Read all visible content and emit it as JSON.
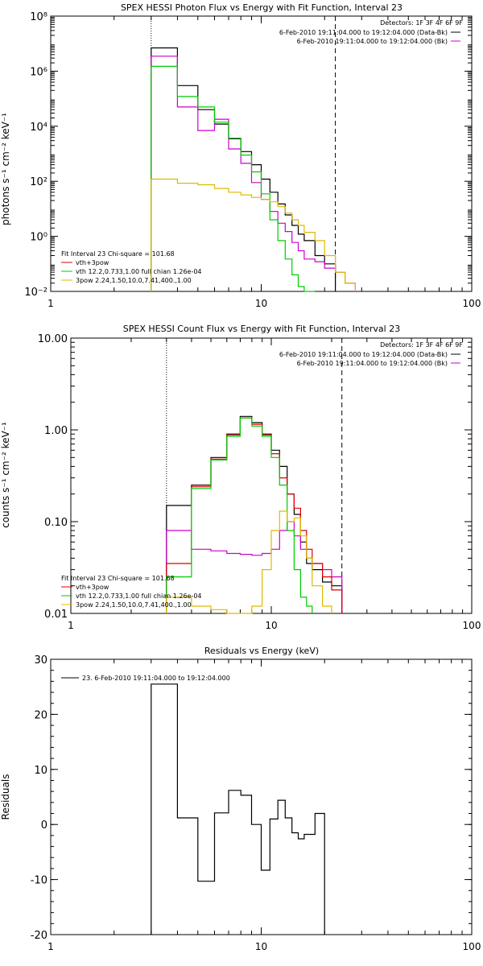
{
  "colors": {
    "data": "#000000",
    "bk": "#cc00cc",
    "total": "#dd0000",
    "thermal": "#00cc00",
    "pow": "#ddbb00"
  },
  "chart_data": [
    {
      "type": "line",
      "title": "SPEX HESSI Photon Flux vs Energy with Fit Function, Interval 23",
      "xlabel": "",
      "ylabel": "photons s⁻¹ cm⁻² keV⁻¹",
      "xscale": "log",
      "yscale": "log",
      "xlim": [
        1,
        100
      ],
      "ylim": [
        0.01,
        100000000
      ],
      "x_ticks": [
        "1",
        "10",
        "100"
      ],
      "y_ticks": [
        "10⁻²",
        "10⁰",
        "10²",
        "10⁴",
        "10⁶",
        "10⁸"
      ],
      "vlines": [
        {
          "x": 3.0,
          "style": "dotted"
        },
        {
          "x": 22.5,
          "style": "dashed"
        }
      ],
      "legend_top": [
        "Detectors: 1F 3F 4F 6F 9F",
        "6-Feb-2010 19:11:04.000 to 19:12:04.000 (Data-Bk)",
        "6-Feb-2010 19:11:04.000 to 19:12:04.000 (Bk)"
      ],
      "legend_fit_header": "Fit Interval 23   Chi-square = 101.68",
      "legend_fit": [
        "vth+3pow",
        "vth 12.2,0.733,1.00  full chian 1.26e-04",
        "3pow 2.24,1.50,10.0,7.41,400.,1.00"
      ],
      "edges": [
        3.0,
        4.0,
        5.0,
        6.0,
        7.0,
        8.0,
        9.0,
        10.0,
        11.0,
        12.0,
        13.0,
        14.0,
        15.0,
        16.0,
        18.0,
        20.0,
        22.5,
        25.0,
        28.0
      ],
      "series": [
        {
          "role": "data",
          "values": [
            7000000,
            300000,
            40000,
            12000,
            3500,
            1200,
            400,
            120,
            40,
            15,
            6,
            2.5,
            1.2,
            0.7,
            0.2,
            0.1,
            null,
            null
          ]
        },
        {
          "role": "bk",
          "values": [
            3500000,
            50000,
            7000,
            18000,
            1500,
            450,
            90,
            22,
            8,
            3,
            1.5,
            0.6,
            0.3,
            0.15,
            0.12,
            0.07,
            0.05,
            0.02
          ]
        },
        {
          "role": "thermal",
          "values": [
            1500000,
            120000,
            50000,
            14000,
            3700,
            900,
            220,
            35,
            4,
            0.7,
            0.15,
            0.04,
            0.015,
            0.008,
            null,
            null,
            null,
            null
          ]
        },
        {
          "role": "pow",
          "values": [
            120,
            85,
            75,
            55,
            40,
            32,
            26,
            22,
            18,
            12,
            7,
            4,
            2.5,
            1.4,
            0.7,
            0.2,
            0.05,
            0.02
          ]
        }
      ]
    },
    {
      "type": "line",
      "title": "SPEX HESSI Count Flux vs Energy with Fit Function, Interval 23",
      "xlabel": "",
      "ylabel": "counts s⁻¹ cm⁻² keV⁻¹",
      "xscale": "log",
      "yscale": "log",
      "xlim": [
        1,
        100
      ],
      "ylim": [
        0.01,
        10
      ],
      "x_ticks": [
        "1",
        "10",
        "100"
      ],
      "y_ticks": [
        "0.01",
        "0.10",
        "1.00",
        "10.00"
      ],
      "vlines": [
        {
          "x": 3.0,
          "style": "dotted"
        },
        {
          "x": 22.5,
          "style": "dashed"
        }
      ],
      "legend_top": [
        "Detectors: 1F 3F 4F 6F 9F",
        "6-Feb-2010 19:11:04.000 to 19:12:04.000 (Data-Bk)",
        "6-Feb-2010 19:11:04.000 to 19:12:04.000 (Bk)"
      ],
      "legend_fit_header": "Fit Interval 23   Chi-square = 101.68",
      "legend_fit": [
        "vth+3pow",
        "vth 12.2,0.733,1.00  full chian 1.26e-04",
        "3pow 2.24,1.50,10.0,7.41,400.,1.00"
      ],
      "edges": [
        3.0,
        4.0,
        5.0,
        6.0,
        7.0,
        8.0,
        9.0,
        10.0,
        11.0,
        12.0,
        13.0,
        14.0,
        15.0,
        16.0,
        18.0,
        20.0,
        22.5
      ],
      "series": [
        {
          "role": "data",
          "values": [
            0.15,
            0.25,
            0.5,
            0.9,
            1.4,
            1.2,
            0.9,
            0.6,
            0.4,
            0.2,
            0.12,
            0.06,
            0.035,
            0.03,
            0.022,
            0.02
          ]
        },
        {
          "role": "bk",
          "values": [
            0.08,
            0.05,
            0.048,
            0.045,
            0.044,
            0.043,
            0.045,
            0.05,
            0.08,
            0.1,
            0.07,
            0.05,
            0.04,
            0.035,
            0.03,
            0.025
          ]
        },
        {
          "role": "total",
          "values": [
            0.035,
            0.24,
            0.48,
            0.88,
            1.35,
            1.15,
            0.88,
            0.55,
            0.3,
            0.2,
            0.14,
            0.08,
            0.05,
            0.035,
            0.025,
            0.018
          ]
        },
        {
          "role": "thermal",
          "values": [
            0.025,
            0.23,
            0.47,
            0.85,
            1.35,
            1.1,
            0.85,
            0.5,
            0.25,
            0.08,
            0.03,
            0.015,
            0.012,
            null,
            null,
            null
          ]
        },
        {
          "role": "pow",
          "values": [
            0.015,
            0.012,
            0.011,
            0.01,
            0.01,
            0.012,
            0.03,
            0.08,
            0.13,
            0.1,
            0.11,
            0.07,
            0.04,
            0.02,
            0.012,
            null
          ]
        }
      ]
    },
    {
      "type": "line",
      "title": "Residuals vs Energy (keV)",
      "xlabel": "",
      "ylabel": "Residuals",
      "xscale": "log",
      "yscale": "linear",
      "xlim": [
        1,
        100
      ],
      "ylim": [
        -20,
        30
      ],
      "x_ticks": [
        "1",
        "10",
        "100"
      ],
      "y_ticks": [
        "-20",
        "-10",
        "0",
        "10",
        "20",
        "30"
      ],
      "legend": "23.  6-Feb-2010 19:11:04.000 to 19:12:04.000",
      "edges": [
        3.0,
        4.0,
        5.0,
        6.0,
        7.0,
        8.0,
        9.0,
        10.0,
        11.0,
        12.0,
        13.0,
        14.0,
        15.0,
        16.0,
        18.0,
        20.0,
        22.5
      ],
      "series": [
        {
          "role": "data",
          "values": [
            25.5,
            1.2,
            -10.3,
            2.1,
            6.2,
            5.3,
            0.0,
            -8.3,
            1.0,
            4.4,
            1.2,
            -1.5,
            -2.6,
            -1.8,
            2.0,
            null
          ]
        }
      ]
    }
  ]
}
